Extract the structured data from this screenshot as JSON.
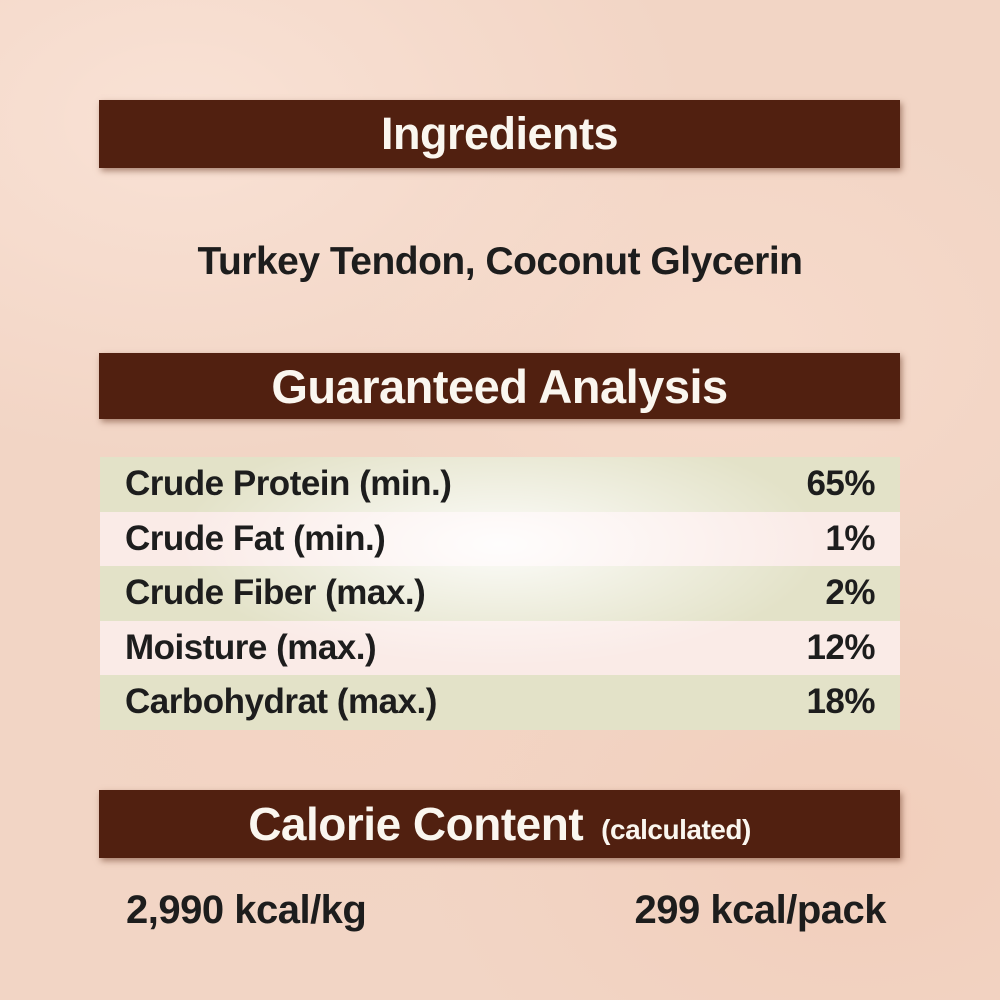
{
  "colors": {
    "page_background": "#f2d5c5",
    "bar_brown": "#512010",
    "bar_text": "#faf6ef",
    "row_green": "#e3e2c8",
    "row_pink": "#faebe7",
    "body_text": "#1d1d1d"
  },
  "sections": {
    "ingredients": {
      "title": "Ingredients",
      "content": "Turkey Tendon, Coconut Glycerin"
    },
    "guaranteed_analysis": {
      "title": "Guaranteed Analysis",
      "rows": [
        {
          "label": "Crude Protein (min.)",
          "value": "65%"
        },
        {
          "label": "Crude Fat (min.)",
          "value": "1%"
        },
        {
          "label": "Crude Fiber (max.)",
          "value": "2%"
        },
        {
          "label": "Moisture (max.)",
          "value": "12%"
        },
        {
          "label": "Carbohydrat (max.)",
          "value": "18%"
        }
      ]
    },
    "calorie_content": {
      "title": "Calorie Content",
      "subtitle": "(calculated)",
      "per_kg": "2,990 kcal/kg",
      "per_pack": "299 kcal/pack"
    }
  }
}
